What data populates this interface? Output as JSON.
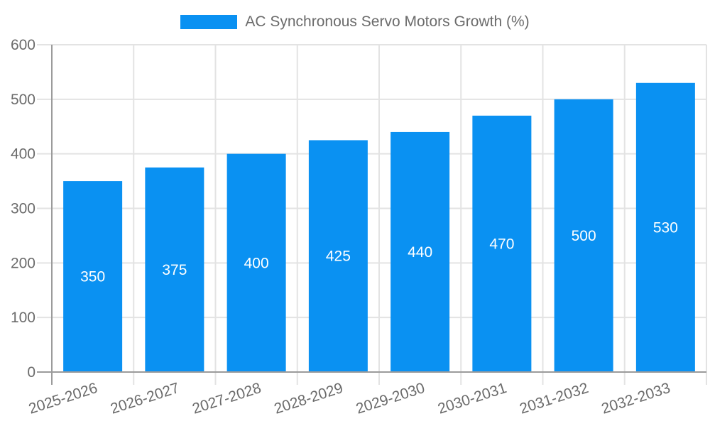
{
  "chart_data": {
    "type": "bar",
    "title": "",
    "legend_label": "AC Synchronous Servo Motors Growth (%)",
    "legend_position": "top",
    "categories": [
      "2025-2026",
      "2026-2027",
      "2027-2028",
      "2028-2029",
      "2029-2030",
      "2030-2031",
      "2031-2032",
      "2032-2033"
    ],
    "values": [
      350,
      375,
      400,
      425,
      440,
      470,
      500,
      530
    ],
    "value_labels_text": [
      "350",
      "375",
      "400",
      "425",
      "440",
      "470",
      "500",
      "530"
    ],
    "xlabel": "",
    "ylabel": "",
    "ylim": [
      0,
      600
    ],
    "yticks": [
      0,
      100,
      200,
      300,
      400,
      500,
      600
    ],
    "ytick_labels": [
      "0",
      "100",
      "200",
      "300",
      "400",
      "500",
      "600"
    ],
    "grid": true,
    "x_tick_rotation_deg": -18,
    "value_label_position": "inside-center",
    "colors": {
      "bar": "#0A91F2",
      "grid": "#E3E3E3",
      "axis_line": "#9B9B9B",
      "axis_text": "#6B6B6B",
      "legend_text": "#6B6B6B",
      "value_label": "#FFFFFF",
      "background": "#FFFFFF"
    }
  }
}
